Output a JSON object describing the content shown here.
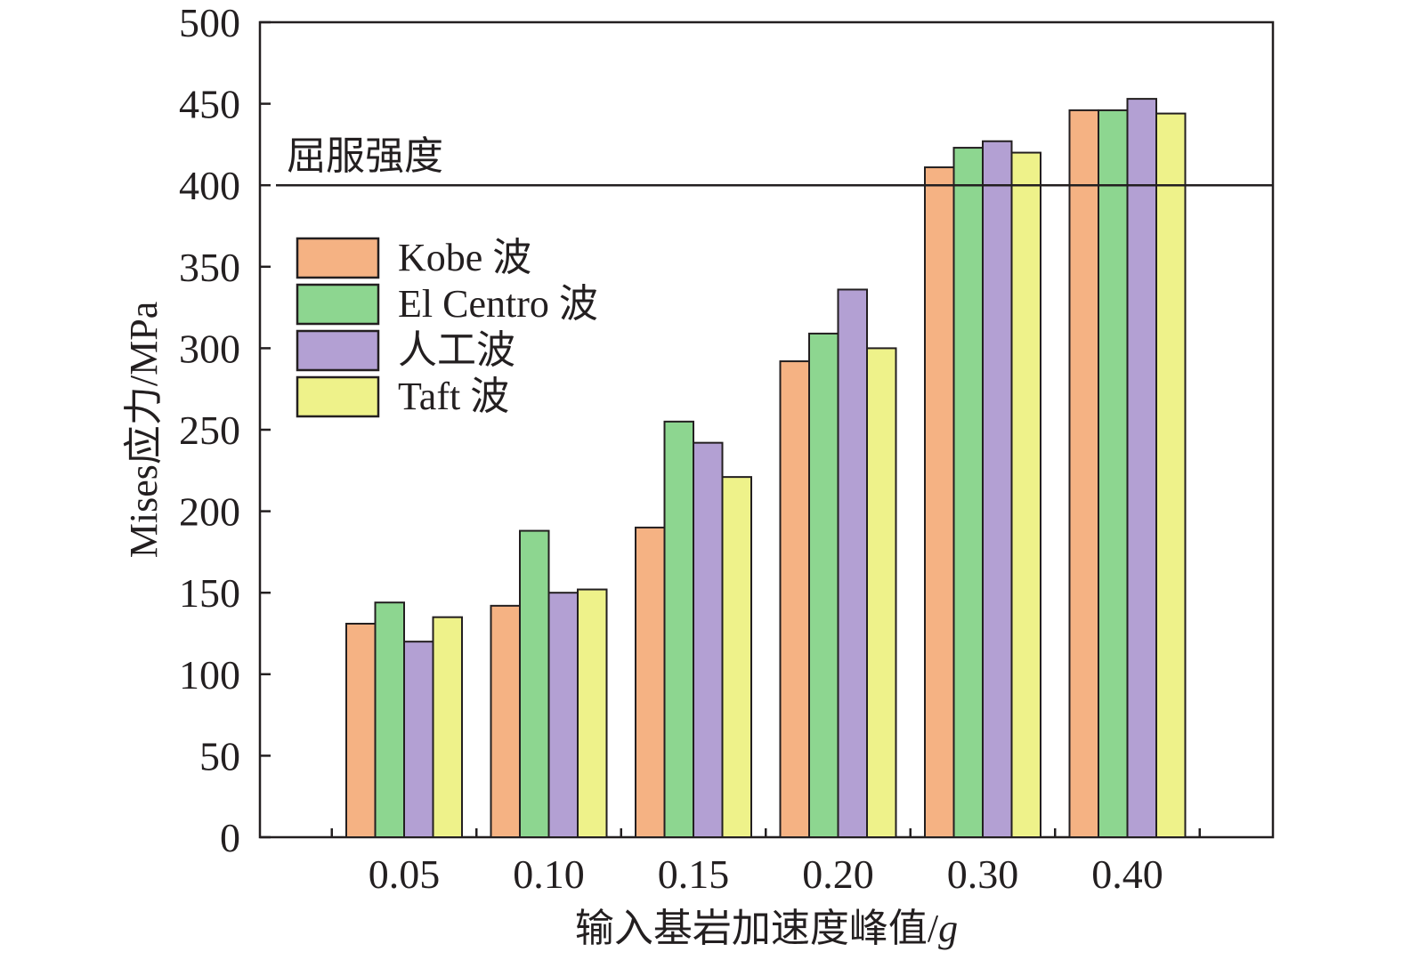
{
  "chart_data": {
    "type": "bar",
    "ylabel": "Mises应力/MPa",
    "xlabel": "输入基岩加速度峰值/",
    "xlabel_unit": "g",
    "categories": [
      "0.05",
      "0.10",
      "0.15",
      "0.20",
      "0.30",
      "0.40"
    ],
    "ylim": [
      0,
      500
    ],
    "yticks": [
      0,
      50,
      100,
      150,
      200,
      250,
      300,
      350,
      400,
      450,
      500
    ],
    "series": [
      {
        "name": "Kobe 波",
        "color": "#f5b283",
        "values": [
          131,
          142,
          190,
          292,
          411,
          446
        ]
      },
      {
        "name": "El Centro 波",
        "color": "#8dd690",
        "values": [
          144,
          188,
          255,
          309,
          423,
          446
        ]
      },
      {
        "name": "人工波",
        "color": "#b3a0d3",
        "values": [
          120,
          150,
          242,
          336,
          427,
          453
        ]
      },
      {
        "name": "Taft 波",
        "color": "#eef28a",
        "values": [
          135,
          152,
          221,
          300,
          420,
          444
        ]
      }
    ],
    "reference_line": {
      "value": 400,
      "label": "屈服强度"
    },
    "legend_position": "upper-left",
    "grid": false
  }
}
